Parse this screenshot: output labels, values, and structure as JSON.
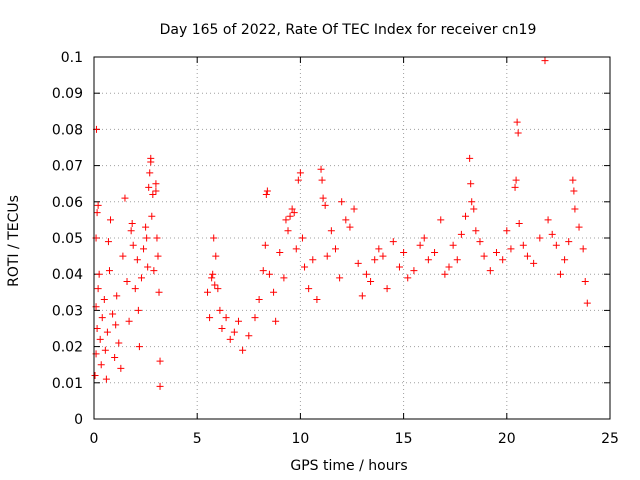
{
  "chart_data": {
    "type": "scatter",
    "title": "Day 165 of 2022, Rate Of TEC Index for receiver cn19",
    "xlabel": "GPS time / hours",
    "ylabel": "ROTI / TECUs",
    "xlim": [
      0,
      25
    ],
    "ylim": [
      0,
      0.1
    ],
    "x_ticks": [
      0,
      5,
      10,
      15,
      20,
      25
    ],
    "x_tick_labels": [
      "0",
      "5",
      "10",
      "15",
      "20",
      "25"
    ],
    "y_ticks": [
      0,
      0.01,
      0.02,
      0.03,
      0.04,
      0.05,
      0.06,
      0.07,
      0.08,
      0.09,
      0.1
    ],
    "y_tick_labels": [
      "0",
      "0.01",
      "0.02",
      "0.03",
      "0.04",
      "0.05",
      "0.06",
      "0.07",
      "0.08",
      "0.09",
      "0.1"
    ],
    "grid": true,
    "marker": "+",
    "color": "#ff0000",
    "series": [
      {
        "points": [
          [
            0.05,
            0.012
          ],
          [
            0.1,
            0.018
          ],
          [
            0.15,
            0.025
          ],
          [
            0.1,
            0.031
          ],
          [
            0.2,
            0.036
          ],
          [
            0.25,
            0.04
          ],
          [
            0.1,
            0.05
          ],
          [
            0.15,
            0.057
          ],
          [
            0.2,
            0.059
          ],
          [
            0.12,
            0.08
          ],
          [
            0.3,
            0.022
          ],
          [
            0.35,
            0.015
          ],
          [
            0.4,
            0.028
          ],
          [
            0.5,
            0.033
          ],
          [
            0.55,
            0.019
          ],
          [
            0.6,
            0.011
          ],
          [
            0.65,
            0.024
          ],
          [
            0.7,
            0.049
          ],
          [
            0.8,
            0.055
          ],
          [
            0.75,
            0.041
          ],
          [
            0.9,
            0.029
          ],
          [
            1.0,
            0.017
          ],
          [
            1.05,
            0.026
          ],
          [
            1.1,
            0.034
          ],
          [
            1.2,
            0.021
          ],
          [
            1.3,
            0.014
          ],
          [
            1.4,
            0.045
          ],
          [
            1.5,
            0.061
          ],
          [
            1.6,
            0.038
          ],
          [
            1.7,
            0.027
          ],
          [
            1.8,
            0.052
          ],
          [
            1.85,
            0.054
          ],
          [
            1.9,
            0.048
          ],
          [
            2.0,
            0.036
          ],
          [
            2.1,
            0.044
          ],
          [
            2.15,
            0.03
          ],
          [
            2.2,
            0.02
          ],
          [
            2.3,
            0.039
          ],
          [
            2.4,
            0.047
          ],
          [
            2.5,
            0.053
          ],
          [
            2.55,
            0.05
          ],
          [
            2.6,
            0.042
          ],
          [
            2.65,
            0.064
          ],
          [
            2.7,
            0.068
          ],
          [
            2.75,
            0.072
          ],
          [
            2.75,
            0.071
          ],
          [
            2.8,
            0.056
          ],
          [
            2.85,
            0.062
          ],
          [
            2.9,
            0.041
          ],
          [
            3.0,
            0.063
          ],
          [
            3.0,
            0.065
          ],
          [
            3.05,
            0.05
          ],
          [
            3.1,
            0.045
          ],
          [
            3.15,
            0.035
          ],
          [
            3.2,
            0.016
          ],
          [
            3.2,
            0.009
          ],
          [
            5.5,
            0.035
          ],
          [
            5.6,
            0.028
          ],
          [
            5.7,
            0.039
          ],
          [
            5.75,
            0.04
          ],
          [
            5.8,
            0.05
          ],
          [
            5.85,
            0.037
          ],
          [
            5.9,
            0.045
          ],
          [
            6.0,
            0.036
          ],
          [
            6.1,
            0.03
          ],
          [
            6.2,
            0.025
          ],
          [
            6.4,
            0.028
          ],
          [
            6.6,
            0.022
          ],
          [
            6.8,
            0.024
          ],
          [
            7.0,
            0.027
          ],
          [
            7.2,
            0.019
          ],
          [
            7.5,
            0.023
          ],
          [
            7.8,
            0.028
          ],
          [
            8.0,
            0.033
          ],
          [
            8.2,
            0.041
          ],
          [
            8.3,
            0.048
          ],
          [
            8.35,
            0.062
          ],
          [
            8.4,
            0.063
          ],
          [
            8.5,
            0.04
          ],
          [
            8.7,
            0.035
          ],
          [
            8.8,
            0.027
          ],
          [
            9.0,
            0.046
          ],
          [
            9.2,
            0.039
          ],
          [
            9.3,
            0.055
          ],
          [
            9.4,
            0.052
          ],
          [
            9.5,
            0.056
          ],
          [
            9.6,
            0.058
          ],
          [
            9.7,
            0.057
          ],
          [
            9.8,
            0.047
          ],
          [
            9.9,
            0.066
          ],
          [
            10.0,
            0.068
          ],
          [
            10.1,
            0.05
          ],
          [
            10.2,
            0.042
          ],
          [
            10.4,
            0.036
          ],
          [
            10.6,
            0.044
          ],
          [
            10.8,
            0.033
          ],
          [
            11.0,
            0.069
          ],
          [
            11.05,
            0.066
          ],
          [
            11.1,
            0.061
          ],
          [
            11.2,
            0.059
          ],
          [
            11.3,
            0.045
          ],
          [
            11.5,
            0.052
          ],
          [
            11.7,
            0.047
          ],
          [
            11.9,
            0.039
          ],
          [
            12.0,
            0.06
          ],
          [
            12.2,
            0.055
          ],
          [
            12.4,
            0.053
          ],
          [
            12.6,
            0.058
          ],
          [
            12.8,
            0.043
          ],
          [
            13.0,
            0.034
          ],
          [
            13.2,
            0.04
          ],
          [
            13.4,
            0.038
          ],
          [
            13.6,
            0.044
          ],
          [
            13.8,
            0.047
          ],
          [
            14.0,
            0.045
          ],
          [
            14.2,
            0.036
          ],
          [
            14.5,
            0.049
          ],
          [
            14.8,
            0.042
          ],
          [
            15.0,
            0.046
          ],
          [
            15.2,
            0.039
          ],
          [
            15.5,
            0.041
          ],
          [
            15.8,
            0.048
          ],
          [
            16.0,
            0.05
          ],
          [
            16.2,
            0.044
          ],
          [
            16.5,
            0.046
          ],
          [
            16.8,
            0.055
          ],
          [
            17.0,
            0.04
          ],
          [
            17.2,
            0.042
          ],
          [
            17.4,
            0.048
          ],
          [
            17.6,
            0.044
          ],
          [
            17.8,
            0.051
          ],
          [
            18.0,
            0.056
          ],
          [
            18.2,
            0.072
          ],
          [
            18.25,
            0.065
          ],
          [
            18.3,
            0.06
          ],
          [
            18.4,
            0.058
          ],
          [
            18.5,
            0.052
          ],
          [
            18.7,
            0.049
          ],
          [
            18.9,
            0.045
          ],
          [
            19.2,
            0.041
          ],
          [
            19.5,
            0.046
          ],
          [
            19.8,
            0.044
          ],
          [
            20.0,
            0.052
          ],
          [
            20.2,
            0.047
          ],
          [
            20.4,
            0.064
          ],
          [
            20.45,
            0.066
          ],
          [
            20.5,
            0.082
          ],
          [
            20.55,
            0.079
          ],
          [
            20.6,
            0.054
          ],
          [
            20.8,
            0.048
          ],
          [
            21.0,
            0.045
          ],
          [
            21.3,
            0.043
          ],
          [
            21.6,
            0.05
          ],
          [
            21.85,
            0.099
          ],
          [
            22.0,
            0.055
          ],
          [
            22.2,
            0.051
          ],
          [
            22.4,
            0.048
          ],
          [
            22.6,
            0.04
          ],
          [
            22.8,
            0.044
          ],
          [
            23.0,
            0.049
          ],
          [
            23.2,
            0.066
          ],
          [
            23.25,
            0.063
          ],
          [
            23.3,
            0.058
          ],
          [
            23.5,
            0.053
          ],
          [
            23.7,
            0.047
          ],
          [
            23.8,
            0.038
          ],
          [
            23.9,
            0.032
          ]
        ]
      }
    ]
  }
}
